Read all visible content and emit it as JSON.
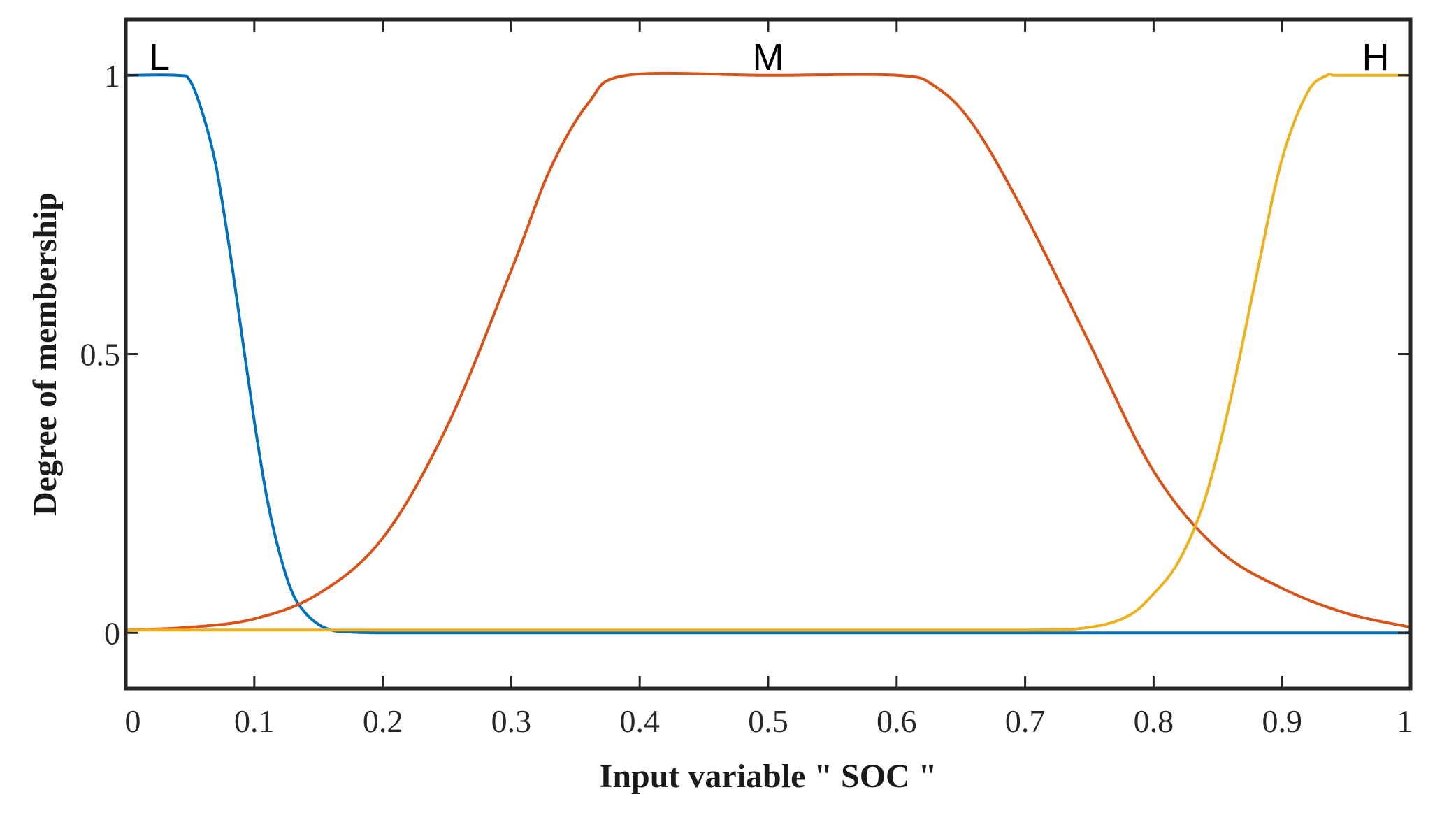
{
  "chart_data": {
    "type": "line",
    "title": "",
    "xlabel": "Input variable \" SOC \"",
    "ylabel": "Degree of membership",
    "xlim": [
      0,
      1
    ],
    "ylim": [
      -0.1,
      1.1
    ],
    "xticks": [
      0,
      0.1,
      0.2,
      0.3,
      0.4,
      0.5,
      0.6,
      0.7,
      0.8,
      0.9,
      1
    ],
    "xtick_labels": [
      "0",
      "0.1",
      "0.2",
      "0.3",
      "0.4",
      "0.5",
      "0.6",
      "0.7",
      "0.8",
      "0.9",
      "1"
    ],
    "yticks": [
      0,
      0.5,
      1
    ],
    "ytick_labels": [
      "0",
      "0.5",
      "1"
    ],
    "grid": false,
    "legend": "none",
    "series": [
      {
        "name": "L",
        "color": "#0072BD",
        "x": [
          0,
          0.04,
          0.05,
          0.06,
          0.07,
          0.08,
          0.09,
          0.1,
          0.11,
          0.12,
          0.13,
          0.14,
          0.15,
          0.16,
          0.17,
          0.2,
          0.3,
          0.5,
          0.7,
          0.9,
          1.0
        ],
        "y": [
          1.0,
          1.0,
          0.99,
          0.93,
          0.84,
          0.7,
          0.54,
          0.38,
          0.24,
          0.14,
          0.07,
          0.035,
          0.015,
          0.005,
          0.002,
          0.0,
          0.0,
          0.0,
          0.0,
          0.0,
          0.0
        ]
      },
      {
        "name": "M",
        "color": "#D95319",
        "x": [
          0.0,
          0.05,
          0.1,
          0.15,
          0.2,
          0.25,
          0.3,
          0.33,
          0.36,
          0.39,
          0.5,
          0.6,
          0.63,
          0.66,
          0.7,
          0.75,
          0.8,
          0.85,
          0.9,
          0.95,
          1.0
        ],
        "y": [
          0.005,
          0.01,
          0.025,
          0.07,
          0.17,
          0.37,
          0.65,
          0.83,
          0.95,
          1.0,
          1.0,
          1.0,
          0.98,
          0.91,
          0.75,
          0.52,
          0.29,
          0.15,
          0.08,
          0.035,
          0.01
        ],
        "annotation": "M"
      },
      {
        "name": "H",
        "color": "#EDB120",
        "x": [
          0.0,
          0.2,
          0.5,
          0.7,
          0.75,
          0.78,
          0.8,
          0.82,
          0.84,
          0.86,
          0.88,
          0.9,
          0.92,
          0.935,
          0.94,
          0.95,
          1.0
        ],
        "y": [
          0.005,
          0.005,
          0.005,
          0.005,
          0.01,
          0.03,
          0.07,
          0.13,
          0.24,
          0.42,
          0.64,
          0.85,
          0.97,
          1.0,
          1.0,
          1.0,
          1.0
        ]
      }
    ],
    "annotations": [
      "L",
      "M",
      "H"
    ]
  }
}
